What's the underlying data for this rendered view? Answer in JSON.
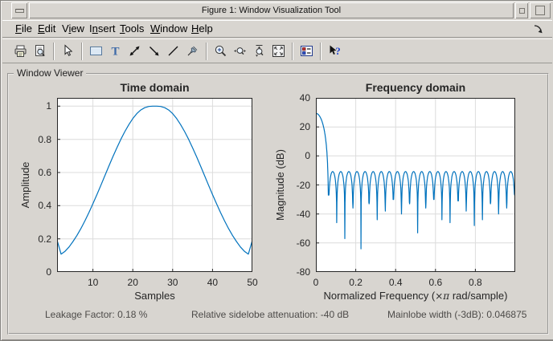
{
  "titlebar": {
    "title": "Figure 1: Window Visualization Tool",
    "buttons": [
      "window-menu",
      "iconify",
      "maximize"
    ]
  },
  "menubar": {
    "items": [
      {
        "label": "File",
        "mnemonic_index": 0
      },
      {
        "label": "Edit",
        "mnemonic_index": 0
      },
      {
        "label": "View",
        "mnemonic_index": 1
      },
      {
        "label": "Insert",
        "mnemonic_index": 1
      },
      {
        "label": "Tools",
        "mnemonic_index": 0
      },
      {
        "label": "Window",
        "mnemonic_index": 0
      },
      {
        "label": "Help",
        "mnemonic_index": 0
      }
    ],
    "dock_arrow_icon": "dock-figure-icon"
  },
  "toolbar": {
    "items": [
      "print",
      "print-preview",
      "sep",
      "edit-plot-pointer",
      "sep",
      "insert-rectangle",
      "insert-text",
      "insert-double-arrow",
      "insert-arrow",
      "insert-line",
      "pin-to-axes",
      "sep",
      "zoom-in",
      "zoom-x",
      "zoom-y",
      "restore-view",
      "sep",
      "legend",
      "sep",
      "whats-this"
    ]
  },
  "viewer": {
    "label": "Window Viewer"
  },
  "status": {
    "leakage": {
      "label": "Leakage Factor:",
      "value": "0.18 %"
    },
    "sidelobe": {
      "label": "Relative sidelobe attenuation:",
      "value": "-40 dB"
    },
    "mainlobe": {
      "label": "Mainlobe width (-3dB):",
      "value": "0.046875"
    }
  },
  "colors": {
    "line": "#0072BD",
    "grid": "#dcdcdc",
    "axis": "#262626",
    "chrome": "#d8d5d0"
  },
  "chart_data": [
    {
      "id": "time",
      "type": "line",
      "title": "Time domain",
      "xlabel": "Samples",
      "ylabel": "Amplitude",
      "xlim": [
        1,
        50
      ],
      "ylim": [
        0,
        1.05
      ],
      "xticks": [
        10,
        20,
        30,
        40,
        50
      ],
      "yticks": [
        0,
        0.2,
        0.4,
        0.6,
        0.8,
        1
      ],
      "grid": true,
      "x": [
        1,
        2,
        3,
        4,
        5,
        6,
        7,
        8,
        9,
        10,
        11,
        12,
        13,
        14,
        15,
        16,
        17,
        18,
        19,
        20,
        21,
        22,
        23,
        24,
        25,
        26,
        27,
        28,
        29,
        30,
        31,
        32,
        33,
        34,
        35,
        36,
        37,
        38,
        39,
        40,
        41,
        42,
        43,
        44,
        45,
        46,
        47,
        48,
        49,
        50
      ],
      "y": [
        0.192,
        0.108,
        0.125,
        0.151,
        0.184,
        0.221,
        0.263,
        0.309,
        0.359,
        0.412,
        0.467,
        0.524,
        0.581,
        0.639,
        0.695,
        0.749,
        0.8,
        0.847,
        0.889,
        0.925,
        0.955,
        0.977,
        0.991,
        0.998,
        1.0,
        1.0,
        0.998,
        0.991,
        0.977,
        0.955,
        0.925,
        0.889,
        0.847,
        0.8,
        0.749,
        0.695,
        0.639,
        0.581,
        0.524,
        0.467,
        0.412,
        0.359,
        0.309,
        0.263,
        0.221,
        0.184,
        0.151,
        0.125,
        0.108,
        0.192
      ]
    },
    {
      "id": "freq",
      "type": "line",
      "title": "Frequency domain",
      "xlabel_prefix": "Normalized Frequency  (",
      "xlabel_symbol": "×π",
      "xlabel_suffix": " rad/sample)",
      "ylabel": "Magnitude (dB)",
      "xlim": [
        0,
        1
      ],
      "ylim": [
        -80,
        40
      ],
      "xticks": [
        0,
        0.2,
        0.4,
        0.6,
        0.8
      ],
      "yticks": [
        40,
        20,
        0,
        -20,
        -40,
        -60,
        -80
      ],
      "grid": true,
      "mainlobe": {
        "peak_db": 29.3,
        "first_null": 0.064,
        "edge_db": -27
      },
      "sidelobe_top_db": -10.8,
      "null_spacing": 0.0406,
      "null_depths_db": [
        -46,
        -57,
        -36,
        -64,
        -33,
        -44,
        -38,
        -30,
        -40,
        -33,
        -53,
        -36,
        -30,
        -44,
        -46,
        -31,
        -38,
        -48,
        -44,
        -33,
        -40,
        -36,
        -27
      ]
    }
  ]
}
